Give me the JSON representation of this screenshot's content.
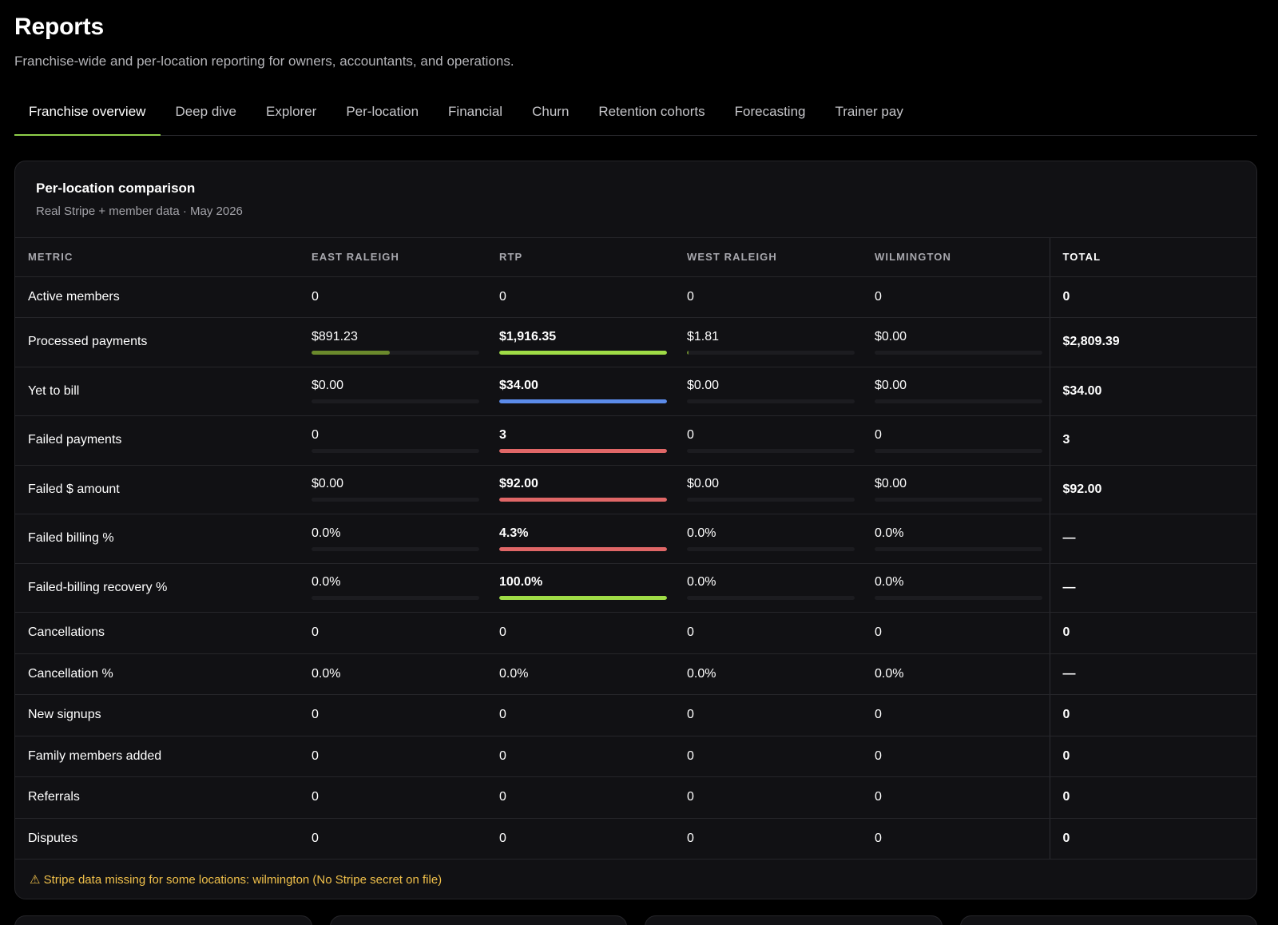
{
  "header": {
    "title": "Reports",
    "subtitle": "Franchise-wide and per-location reporting for owners, accountants, and operations."
  },
  "tabs": [
    {
      "label": "Franchise overview",
      "active": true
    },
    {
      "label": "Deep dive"
    },
    {
      "label": "Explorer"
    },
    {
      "label": "Per-location"
    },
    {
      "label": "Financial"
    },
    {
      "label": "Churn"
    },
    {
      "label": "Retention cohorts"
    },
    {
      "label": "Forecasting"
    },
    {
      "label": "Trainer pay"
    }
  ],
  "comparison": {
    "title": "Per-location comparison",
    "subtitle": "Real Stripe + member data · May 2026",
    "columns": [
      "METRIC",
      "EAST RALEIGH",
      "RTP",
      "WEST RALEIGH",
      "WILMINGTON",
      "TOTAL"
    ],
    "rows": [
      {
        "metric": "Active members",
        "cells": [
          "0",
          "0",
          "0",
          "0"
        ],
        "total": "0"
      },
      {
        "metric": "Processed payments",
        "cells": [
          "$891.23",
          "$1,916.35",
          "$1.81",
          "$0.00"
        ],
        "total": "$2,809.39",
        "bars": [
          0.465,
          1.0,
          0.002,
          0
        ],
        "bar_colors": [
          "#6b8a2c",
          "#9fdc46",
          "#6b8a2c",
          "#6b8a2c"
        ],
        "bold_index": 1
      },
      {
        "metric": "Yet to bill",
        "cells": [
          "$0.00",
          "$34.00",
          "$0.00",
          "$0.00"
        ],
        "total": "$34.00",
        "bars": [
          0,
          1.0,
          0,
          0
        ],
        "bar_colors": [
          "#5b8bea",
          "#5b8bea",
          "#5b8bea",
          "#5b8bea"
        ],
        "bold_index": 1
      },
      {
        "metric": "Failed payments",
        "cells": [
          "0",
          "3",
          "0",
          "0"
        ],
        "total": "3",
        "bars": [
          0,
          1.0,
          0,
          0
        ],
        "bar_colors": [
          "#e06767",
          "#e06767",
          "#e06767",
          "#e06767"
        ],
        "bold_index": 1
      },
      {
        "metric": "Failed $ amount",
        "cells": [
          "$0.00",
          "$92.00",
          "$0.00",
          "$0.00"
        ],
        "total": "$92.00",
        "bars": [
          0,
          1.0,
          0,
          0
        ],
        "bar_colors": [
          "#e06767",
          "#e06767",
          "#e06767",
          "#e06767"
        ],
        "bold_index": 1
      },
      {
        "metric": "Failed billing %",
        "cells": [
          "0.0%",
          "4.3%",
          "0.0%",
          "0.0%"
        ],
        "total": "—",
        "bars": [
          0,
          1.0,
          0,
          0
        ],
        "bar_colors": [
          "#e06767",
          "#e06767",
          "#e06767",
          "#e06767"
        ],
        "bold_index": 1
      },
      {
        "metric": "Failed-billing recovery %",
        "cells": [
          "0.0%",
          "100.0%",
          "0.0%",
          "0.0%"
        ],
        "total": "—",
        "bars": [
          0,
          1.0,
          0,
          0
        ],
        "bar_colors": [
          "#9fdc46",
          "#9fdc46",
          "#9fdc46",
          "#9fdc46"
        ],
        "bold_index": 1
      },
      {
        "metric": "Cancellations",
        "cells": [
          "0",
          "0",
          "0",
          "0"
        ],
        "total": "0"
      },
      {
        "metric": "Cancellation %",
        "cells": [
          "0.0%",
          "0.0%",
          "0.0%",
          "0.0%"
        ],
        "total": "—"
      },
      {
        "metric": "New signups",
        "cells": [
          "0",
          "0",
          "0",
          "0"
        ],
        "total": "0"
      },
      {
        "metric": "Family members added",
        "cells": [
          "0",
          "0",
          "0",
          "0"
        ],
        "total": "0"
      },
      {
        "metric": "Referrals",
        "cells": [
          "0",
          "0",
          "0",
          "0"
        ],
        "total": "0"
      },
      {
        "metric": "Disputes",
        "cells": [
          "0",
          "0",
          "0",
          "0"
        ],
        "total": "0"
      }
    ],
    "warning": "⚠ Stripe data missing for some locations: wilmington (No Stripe secret on file)"
  }
}
